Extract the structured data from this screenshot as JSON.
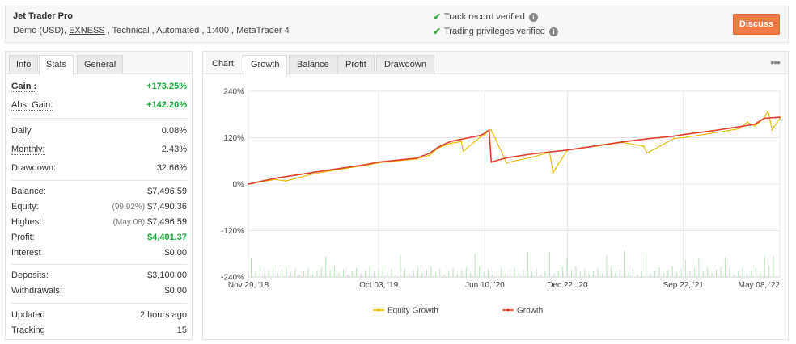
{
  "header": {
    "system_name": "Jet Trader Pro",
    "meta_prefix": "Demo (USD), ",
    "broker": "EXNESS",
    "meta_suffix": " , Technical , Automated , 1:400 , MetaTrader 4",
    "verified_track": "Track record verified",
    "verified_privileges": "Trading privileges verified",
    "discuss_label": "Discuss"
  },
  "stats_tabs": [
    "Info",
    "Stats",
    "General"
  ],
  "stats": {
    "gain_label": "Gain :",
    "gain_value": "+173.25%",
    "abs_gain_label": "Abs. Gain:",
    "abs_gain_value": "+142.20%",
    "daily_label": "Daily",
    "daily_value": "0.08%",
    "monthly_label": "Monthly:",
    "monthly_value": "2.43%",
    "drawdown_label": "Drawdown:",
    "drawdown_value": "32.66%",
    "balance_label": "Balance:",
    "balance_value": "$7,496.59",
    "equity_label": "Equity:",
    "equity_note": "(99.92%)",
    "equity_value": "$7,490.36",
    "highest_label": "Highest:",
    "highest_note": "(May 08)",
    "highest_value": "$7,496.59",
    "profit_label": "Profit:",
    "profit_value": "$4,401.37",
    "interest_label": "Interest",
    "interest_value": "$0.00",
    "deposits_label": "Deposits:",
    "deposits_value": "$3,100.00",
    "withdrawals_label": "Withdrawals:",
    "withdrawals_value": "$0.00",
    "updated_label": "Updated",
    "updated_value": "2 hours ago",
    "tracking_label": "Tracking",
    "tracking_value": "15"
  },
  "chart_tabs": [
    "Chart",
    "Growth",
    "Balance",
    "Profit",
    "Drawdown"
  ],
  "chart_data": {
    "type": "line",
    "y_ticks": [
      "240%",
      "120%",
      "0%",
      "-120%",
      "-240%"
    ],
    "x_ticks": [
      "Nov 29, '18",
      "Oct 03, '19",
      "Jun 10, '20",
      "Dec 22, '20",
      "Sep 22, '21",
      "May 08, '22"
    ],
    "ylim": [
      -240,
      240
    ],
    "grid": true,
    "legend_position": "bottom",
    "series": [
      {
        "name": "Equity Growth",
        "color": "#e6b800",
        "x": [
          "2018-11-29",
          "2019-01-31",
          "2019-02-25",
          "2019-04-30",
          "2019-06-30",
          "2019-08-31",
          "2019-10-03",
          "2019-12-31",
          "2020-02-01",
          "2020-02-20",
          "2020-03-20",
          "2020-04-15",
          "2020-04-20",
          "2020-05-31",
          "2020-06-10",
          "2020-06-20",
          "2020-06-25",
          "2020-07-31",
          "2020-09-30",
          "2020-11-10",
          "2020-11-18",
          "2020-12-22",
          "2021-02-28",
          "2021-04-30",
          "2021-06-20",
          "2021-06-28",
          "2021-08-31",
          "2021-09-22",
          "2021-11-30",
          "2022-01-31",
          "2022-02-20",
          "2022-03-10",
          "2022-04-01",
          "2022-04-10",
          "2022-04-20",
          "2022-05-08"
        ],
        "values": [
          0,
          12,
          8,
          26,
          38,
          48,
          55,
          65,
          75,
          93,
          105,
          110,
          85,
          122,
          127,
          140,
          140,
          55,
          70,
          82,
          30,
          88,
          98,
          108,
          98,
          80,
          118,
          120,
          132,
          143,
          160,
          150,
          170,
          188,
          140,
          170
        ]
      },
      {
        "name": "Growth",
        "color": "#e0402a",
        "x": [
          "2018-11-29",
          "2019-01-31",
          "2019-04-30",
          "2019-06-30",
          "2019-08-31",
          "2019-10-03",
          "2019-12-31",
          "2020-02-01",
          "2020-02-20",
          "2020-03-20",
          "2020-05-31",
          "2020-06-10",
          "2020-06-20",
          "2020-06-25",
          "2020-07-31",
          "2020-09-30",
          "2020-12-22",
          "2021-02-28",
          "2021-04-30",
          "2021-06-28",
          "2021-08-31",
          "2021-09-22",
          "2021-11-30",
          "2022-01-31",
          "2022-03-10",
          "2022-04-01",
          "2022-05-08"
        ],
        "values": [
          0,
          15,
          30,
          40,
          50,
          57,
          67,
          80,
          95,
          110,
          126,
          132,
          140,
          57,
          68,
          78,
          88,
          99,
          109,
          117,
          124,
          128,
          138,
          148,
          155,
          170,
          173
        ]
      }
    ]
  }
}
